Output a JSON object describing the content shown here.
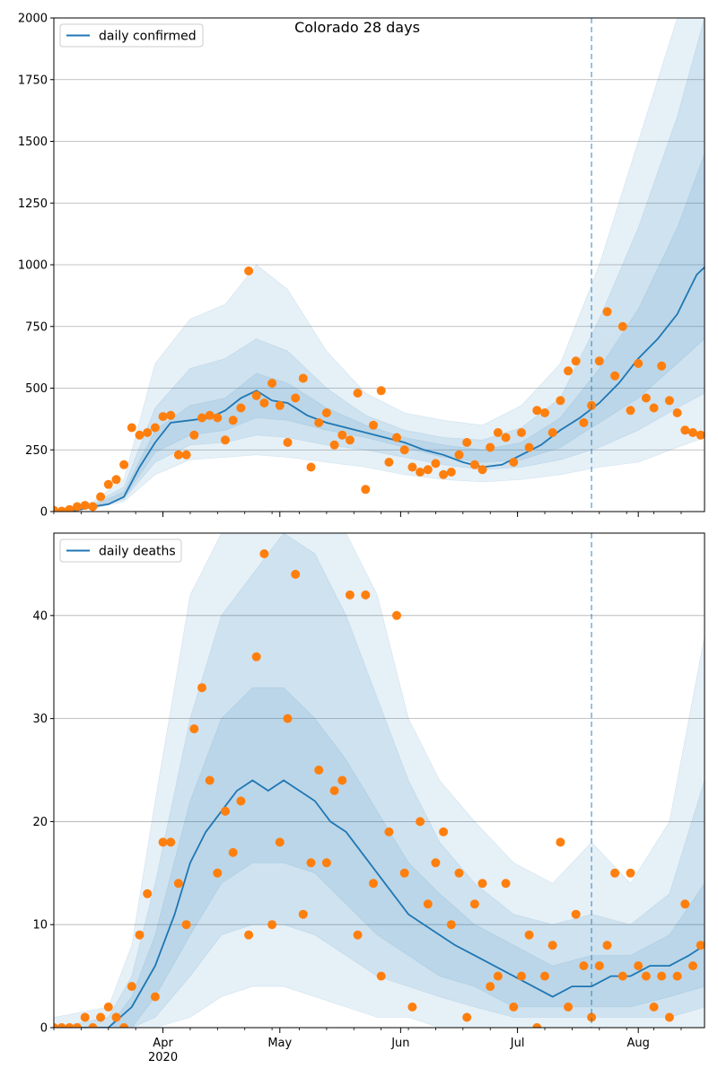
{
  "figure": {
    "title": "Colorado 28 days"
  },
  "colors": {
    "line": "#1f77b4",
    "dots": "#ff7f0e",
    "band": "#1f77b4",
    "grid": "#b0b0b0",
    "forecast_line": "#1f77b4"
  },
  "forecast_start": "2020-07-20",
  "x_axis": {
    "range": [
      "2020-03-04",
      "2020-08-18"
    ],
    "major_ticks": [
      {
        "date": "2020-04-01",
        "label": "Apr"
      },
      {
        "date": "2020-05-01",
        "label": "May"
      },
      {
        "date": "2020-06-01",
        "label": "Jun"
      },
      {
        "date": "2020-07-01",
        "label": "Jul"
      },
      {
        "date": "2020-08-01",
        "label": "Aug"
      }
    ],
    "year_label": "2020"
  },
  "chart_data": [
    {
      "type": "line",
      "legend": "daily confirmed",
      "legend_position": "top-left",
      "grid": "horizontal",
      "ylim": [
        0,
        2000
      ],
      "yticks": [
        0,
        250,
        500,
        750,
        1000,
        1250,
        1500,
        1750,
        2000
      ],
      "line": {
        "x": [
          "2020-03-04",
          "2020-03-10",
          "2020-03-14",
          "2020-03-18",
          "2020-03-22",
          "2020-03-26",
          "2020-03-30",
          "2020-04-03",
          "2020-04-08",
          "2020-04-13",
          "2020-04-17",
          "2020-04-21",
          "2020-04-25",
          "2020-04-29",
          "2020-05-03",
          "2020-05-08",
          "2020-05-13",
          "2020-05-18",
          "2020-05-23",
          "2020-05-28",
          "2020-06-02",
          "2020-06-07",
          "2020-06-12",
          "2020-06-17",
          "2020-06-22",
          "2020-06-27",
          "2020-07-02",
          "2020-07-07",
          "2020-07-12",
          "2020-07-17",
          "2020-07-22",
          "2020-07-27",
          "2020-08-01",
          "2020-08-06",
          "2020-08-11",
          "2020-08-16",
          "2020-08-18"
        ],
        "y": [
          2,
          5,
          20,
          30,
          60,
          180,
          280,
          360,
          370,
          380,
          410,
          460,
          490,
          450,
          440,
          390,
          360,
          340,
          320,
          300,
          280,
          250,
          230,
          200,
          180,
          190,
          230,
          270,
          330,
          380,
          440,
          520,
          620,
          700,
          800,
          960,
          990
        ]
      },
      "bands": [
        {
          "x": [
            "2020-03-04",
            "2020-03-14",
            "2020-03-22",
            "2020-03-30",
            "2020-04-08",
            "2020-04-17",
            "2020-04-25",
            "2020-05-03",
            "2020-05-13",
            "2020-05-23",
            "2020-06-02",
            "2020-06-12",
            "2020-06-22",
            "2020-07-02",
            "2020-07-12",
            "2020-07-22",
            "2020-08-01",
            "2020-08-11",
            "2020-08-18"
          ],
          "lower": [
            0,
            12,
            40,
            150,
            210,
            220,
            230,
            220,
            200,
            180,
            150,
            130,
            120,
            130,
            150,
            180,
            200,
            260,
            300
          ],
          "upper": [
            6,
            40,
            130,
            600,
            780,
            840,
            1000,
            900,
            650,
            480,
            400,
            370,
            350,
            430,
            600,
            1000,
            1500,
            2000,
            2000
          ]
        },
        {
          "x": [
            "2020-03-04",
            "2020-03-14",
            "2020-03-22",
            "2020-03-30",
            "2020-04-08",
            "2020-04-17",
            "2020-04-25",
            "2020-05-03",
            "2020-05-13",
            "2020-05-23",
            "2020-06-02",
            "2020-06-12",
            "2020-06-22",
            "2020-07-02",
            "2020-07-12",
            "2020-07-22",
            "2020-08-01",
            "2020-08-11",
            "2020-08-18"
          ],
          "lower": [
            1,
            16,
            50,
            200,
            270,
            280,
            310,
            300,
            270,
            250,
            220,
            190,
            170,
            180,
            210,
            260,
            330,
            420,
            480
          ],
          "upper": [
            4,
            30,
            100,
            420,
            580,
            620,
            700,
            650,
            500,
            390,
            330,
            300,
            290,
            340,
            460,
            780,
            1150,
            1600,
            2000
          ]
        },
        {
          "x": [
            "2020-03-04",
            "2020-03-14",
            "2020-03-22",
            "2020-03-30",
            "2020-04-08",
            "2020-04-17",
            "2020-04-25",
            "2020-05-03",
            "2020-05-13",
            "2020-05-23",
            "2020-06-02",
            "2020-06-12",
            "2020-06-22",
            "2020-07-02",
            "2020-07-12",
            "2020-07-22",
            "2020-08-01",
            "2020-08-11",
            "2020-08-18"
          ],
          "lower": [
            1,
            18,
            55,
            240,
            310,
            330,
            380,
            370,
            330,
            300,
            260,
            220,
            200,
            210,
            260,
            360,
            460,
            600,
            700
          ],
          "upper": [
            3,
            24,
            80,
            330,
            430,
            460,
            560,
            520,
            420,
            350,
            300,
            270,
            250,
            280,
            380,
            580,
            820,
            1150,
            1450
          ]
        }
      ],
      "points": {
        "x": [
          "2020-03-04",
          "2020-03-06",
          "2020-03-08",
          "2020-03-10",
          "2020-03-12",
          "2020-03-14",
          "2020-03-16",
          "2020-03-18",
          "2020-03-20",
          "2020-03-22",
          "2020-03-24",
          "2020-03-26",
          "2020-03-28",
          "2020-03-30",
          "2020-04-01",
          "2020-04-03",
          "2020-04-05",
          "2020-04-07",
          "2020-04-09",
          "2020-04-11",
          "2020-04-13",
          "2020-04-15",
          "2020-04-17",
          "2020-04-19",
          "2020-04-21",
          "2020-04-23",
          "2020-04-25",
          "2020-04-27",
          "2020-04-29",
          "2020-05-01",
          "2020-05-03",
          "2020-05-05",
          "2020-05-07",
          "2020-05-09",
          "2020-05-11",
          "2020-05-13",
          "2020-05-15",
          "2020-05-17",
          "2020-05-19",
          "2020-05-21",
          "2020-05-23",
          "2020-05-25",
          "2020-05-27",
          "2020-05-29",
          "2020-05-31",
          "2020-06-02",
          "2020-06-04",
          "2020-06-06",
          "2020-06-08",
          "2020-06-10",
          "2020-06-12",
          "2020-06-14",
          "2020-06-16",
          "2020-06-18",
          "2020-06-20",
          "2020-06-22",
          "2020-06-24",
          "2020-06-26",
          "2020-06-28",
          "2020-06-30",
          "2020-07-02",
          "2020-07-04",
          "2020-07-06",
          "2020-07-08",
          "2020-07-10",
          "2020-07-12",
          "2020-07-14",
          "2020-07-16",
          "2020-07-18",
          "2020-07-20",
          "2020-07-22",
          "2020-07-24",
          "2020-07-26",
          "2020-07-28",
          "2020-07-30",
          "2020-08-01",
          "2020-08-03",
          "2020-08-05",
          "2020-08-07",
          "2020-08-09",
          "2020-08-11",
          "2020-08-13",
          "2020-08-15",
          "2020-08-17"
        ],
        "y": [
          5,
          2,
          8,
          20,
          25,
          20,
          60,
          110,
          130,
          190,
          340,
          310,
          320,
          340,
          385,
          390,
          230,
          230,
          310,
          380,
          390,
          380,
          290,
          370,
          420,
          975,
          470,
          440,
          520,
          430,
          280,
          460,
          540,
          180,
          360,
          400,
          270,
          310,
          290,
          480,
          90,
          350,
          490,
          200,
          300,
          250,
          180,
          160,
          170,
          195,
          150,
          160,
          230,
          280,
          190,
          170,
          260,
          320,
          300,
          200,
          320,
          260,
          410,
          400,
          320,
          450,
          570,
          610,
          360,
          430,
          610,
          810,
          550,
          750,
          410,
          600,
          460,
          420,
          590,
          450,
          400,
          330,
          320,
          310
        ]
      }
    },
    {
      "type": "line",
      "legend": "daily deaths",
      "legend_position": "top-left",
      "grid": "horizontal",
      "ylim": [
        0,
        48
      ],
      "yticks": [
        0,
        10,
        20,
        30,
        40
      ],
      "line": {
        "x": [
          "2020-03-04",
          "2020-03-10",
          "2020-03-18",
          "2020-03-24",
          "2020-03-30",
          "2020-04-04",
          "2020-04-08",
          "2020-04-12",
          "2020-04-16",
          "2020-04-20",
          "2020-04-24",
          "2020-04-28",
          "2020-05-02",
          "2020-05-06",
          "2020-05-10",
          "2020-05-14",
          "2020-05-18",
          "2020-05-22",
          "2020-05-26",
          "2020-05-30",
          "2020-06-03",
          "2020-06-07",
          "2020-06-11",
          "2020-06-15",
          "2020-06-20",
          "2020-06-25",
          "2020-06-30",
          "2020-07-05",
          "2020-07-10",
          "2020-07-15",
          "2020-07-20",
          "2020-07-25",
          "2020-07-30",
          "2020-08-04",
          "2020-08-09",
          "2020-08-14",
          "2020-08-18"
        ],
        "y": [
          0,
          0,
          0,
          2,
          6,
          11,
          16,
          19,
          21,
          23,
          24,
          23,
          24,
          23,
          22,
          20,
          19,
          17,
          15,
          13,
          11,
          10,
          9,
          8,
          7,
          6,
          5,
          4,
          3,
          4,
          4,
          5,
          5,
          6,
          6,
          7,
          8
        ]
      },
      "bands": [
        {
          "x": [
            "2020-03-04",
            "2020-03-18",
            "2020-03-24",
            "2020-03-30",
            "2020-04-08",
            "2020-04-16",
            "2020-04-24",
            "2020-05-02",
            "2020-05-10",
            "2020-05-18",
            "2020-05-26",
            "2020-06-03",
            "2020-06-11",
            "2020-06-20",
            "2020-06-30",
            "2020-07-10",
            "2020-07-20",
            "2020-07-30",
            "2020-08-09",
            "2020-08-18"
          ],
          "lower": [
            0,
            0,
            0,
            0,
            1,
            3,
            4,
            4,
            3,
            2,
            1,
            1,
            0,
            0,
            0,
            0,
            0,
            0,
            0,
            0
          ],
          "upper": [
            1,
            2,
            8,
            22,
            42,
            48,
            48,
            48,
            48,
            48,
            42,
            30,
            24,
            20,
            16,
            14,
            18,
            14,
            20,
            38
          ]
        },
        {
          "x": [
            "2020-03-04",
            "2020-03-18",
            "2020-03-24",
            "2020-03-30",
            "2020-04-08",
            "2020-04-16",
            "2020-04-24",
            "2020-05-02",
            "2020-05-10",
            "2020-05-18",
            "2020-05-26",
            "2020-06-03",
            "2020-06-11",
            "2020-06-20",
            "2020-06-30",
            "2020-07-10",
            "2020-07-20",
            "2020-07-30",
            "2020-08-09",
            "2020-08-18"
          ],
          "lower": [
            0,
            0,
            0,
            1,
            5,
            9,
            10,
            10,
            9,
            7,
            5,
            4,
            3,
            2,
            1,
            1,
            1,
            1,
            1,
            2
          ],
          "upper": [
            0,
            1,
            5,
            14,
            30,
            40,
            44,
            48,
            46,
            40,
            32,
            24,
            18,
            14,
            11,
            10,
            11,
            10,
            13,
            24
          ]
        },
        {
          "x": [
            "2020-03-04",
            "2020-03-18",
            "2020-03-24",
            "2020-03-30",
            "2020-04-08",
            "2020-04-16",
            "2020-04-24",
            "2020-05-02",
            "2020-05-10",
            "2020-05-18",
            "2020-05-26",
            "2020-06-03",
            "2020-06-11",
            "2020-06-20",
            "2020-06-30",
            "2020-07-10",
            "2020-07-20",
            "2020-07-30",
            "2020-08-09",
            "2020-08-18"
          ],
          "lower": [
            0,
            0,
            0,
            3,
            9,
            14,
            16,
            16,
            15,
            12,
            9,
            7,
            5,
            4,
            2,
            2,
            2,
            2,
            3,
            4
          ],
          "upper": [
            0,
            0,
            3,
            9,
            22,
            30,
            33,
            33,
            30,
            26,
            21,
            16,
            13,
            10,
            8,
            6,
            7,
            7,
            9,
            14
          ]
        }
      ],
      "points": {
        "x": [
          "2020-03-04",
          "2020-03-06",
          "2020-03-08",
          "2020-03-10",
          "2020-03-12",
          "2020-03-14",
          "2020-03-16",
          "2020-03-18",
          "2020-03-20",
          "2020-03-22",
          "2020-03-24",
          "2020-03-26",
          "2020-03-28",
          "2020-03-30",
          "2020-04-01",
          "2020-04-03",
          "2020-04-05",
          "2020-04-07",
          "2020-04-09",
          "2020-04-11",
          "2020-04-13",
          "2020-04-15",
          "2020-04-17",
          "2020-04-19",
          "2020-04-21",
          "2020-04-23",
          "2020-04-25",
          "2020-04-27",
          "2020-04-29",
          "2020-05-01",
          "2020-05-03",
          "2020-05-05",
          "2020-05-07",
          "2020-05-09",
          "2020-05-11",
          "2020-05-13",
          "2020-05-15",
          "2020-05-17",
          "2020-05-19",
          "2020-05-21",
          "2020-05-23",
          "2020-05-25",
          "2020-05-27",
          "2020-05-29",
          "2020-05-31",
          "2020-06-02",
          "2020-06-04",
          "2020-06-06",
          "2020-06-08",
          "2020-06-10",
          "2020-06-12",
          "2020-06-14",
          "2020-06-16",
          "2020-06-18",
          "2020-06-20",
          "2020-06-22",
          "2020-06-24",
          "2020-06-26",
          "2020-06-28",
          "2020-06-30",
          "2020-07-02",
          "2020-07-04",
          "2020-07-06",
          "2020-07-08",
          "2020-07-10",
          "2020-07-12",
          "2020-07-14",
          "2020-07-16",
          "2020-07-18",
          "2020-07-20",
          "2020-07-22",
          "2020-07-24",
          "2020-07-26",
          "2020-07-28",
          "2020-07-30",
          "2020-08-01",
          "2020-08-03",
          "2020-08-05",
          "2020-08-07",
          "2020-08-09",
          "2020-08-11",
          "2020-08-13",
          "2020-08-15",
          "2020-08-17"
        ],
        "y": [
          0,
          0,
          0,
          0,
          1,
          0,
          1,
          2,
          1,
          0,
          4,
          9,
          13,
          3,
          18,
          18,
          14,
          10,
          29,
          33,
          24,
          15,
          21,
          17,
          22,
          9,
          36,
          46,
          10,
          18,
          30,
          44,
          11,
          16,
          25,
          16,
          23,
          24,
          42,
          9,
          42,
          14,
          5,
          19,
          40,
          15,
          2,
          20,
          12,
          16,
          19,
          10,
          15,
          1,
          12,
          14,
          4,
          5,
          14,
          2,
          5,
          9,
          0,
          5,
          8,
          18,
          2,
          11,
          6,
          1,
          6,
          8,
          15,
          5,
          15,
          6,
          5,
          2,
          5,
          1,
          5,
          12,
          6,
          8
        ]
      }
    }
  ]
}
